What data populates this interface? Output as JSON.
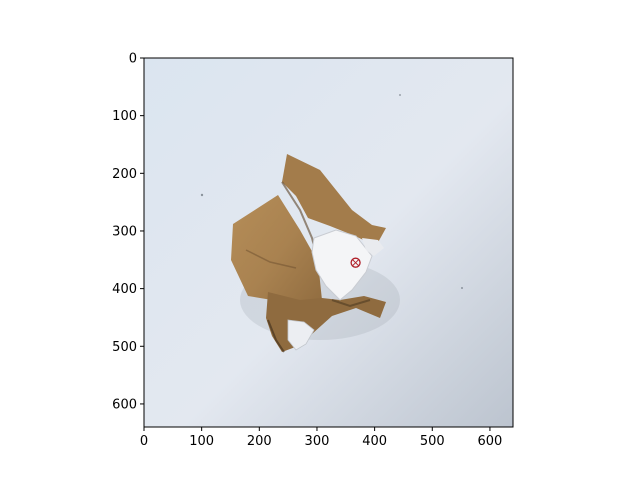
{
  "chart_data": {
    "type": "image",
    "title": "",
    "xlabel": "",
    "ylabel": "",
    "image_description": "crumpled brown cardboard with white inner paper on a light gray background",
    "xlim": [
      0,
      640
    ],
    "ylim": [
      640,
      0
    ],
    "x_ticks": [
      0,
      100,
      200,
      300,
      400,
      500,
      600
    ],
    "y_ticks": [
      0,
      100,
      200,
      300,
      400,
      500,
      600
    ],
    "marker": {
      "x": 367,
      "y": 355,
      "color": "#b0202a"
    }
  }
}
